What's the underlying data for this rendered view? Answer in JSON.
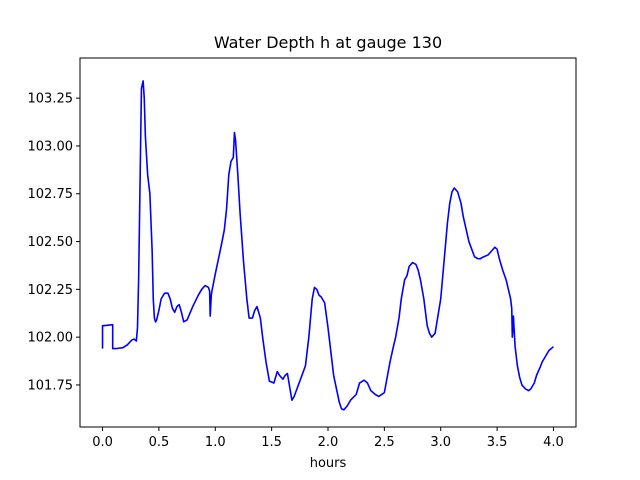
{
  "chart_data": {
    "type": "line",
    "title": "Water Depth h at gauge 130",
    "xlabel": "hours",
    "ylabel": "",
    "xlim": [
      -0.2,
      4.2
    ],
    "ylim": [
      101.53,
      103.46
    ],
    "xticks": [
      0.0,
      0.5,
      1.0,
      1.5,
      2.0,
      2.5,
      3.0,
      3.5,
      4.0
    ],
    "xtick_labels": [
      "0.0",
      "0.5",
      "1.0",
      "1.5",
      "2.0",
      "2.5",
      "3.0",
      "3.5",
      "4.0"
    ],
    "yticks": [
      101.75,
      102.0,
      102.25,
      102.5,
      102.75,
      103.0,
      103.25
    ],
    "ytick_labels": [
      "101.75",
      "102.00",
      "102.25",
      "102.50",
      "102.75",
      "103.00",
      "103.25"
    ],
    "grid": false,
    "series": [
      {
        "name": "",
        "color": "#0000ff",
        "x": [
          0.0,
          0.0,
          0.01,
          0.09,
          0.09,
          0.12,
          0.18,
          0.22,
          0.26,
          0.28,
          0.3,
          0.31,
          0.32,
          0.33,
          0.345,
          0.36,
          0.37,
          0.38,
          0.4,
          0.42,
          0.44,
          0.45,
          0.46,
          0.47,
          0.48,
          0.5,
          0.52,
          0.55,
          0.58,
          0.6,
          0.62,
          0.64,
          0.66,
          0.68,
          0.7,
          0.72,
          0.75,
          0.8,
          0.85,
          0.88,
          0.91,
          0.94,
          0.95,
          0.955,
          0.965,
          0.97,
          1.0,
          1.05,
          1.08,
          1.1,
          1.12,
          1.14,
          1.16,
          1.17,
          1.18,
          1.2,
          1.22,
          1.25,
          1.28,
          1.3,
          1.33,
          1.35,
          1.37,
          1.4,
          1.42,
          1.45,
          1.48,
          1.52,
          1.55,
          1.57,
          1.6,
          1.62,
          1.64,
          1.66,
          1.68,
          1.7,
          1.75,
          1.8,
          1.83,
          1.86,
          1.88,
          1.9,
          1.92,
          1.94,
          1.97,
          2.0,
          2.05,
          2.1,
          2.12,
          2.14,
          2.17,
          2.2,
          2.25,
          2.28,
          2.32,
          2.35,
          2.38,
          2.42,
          2.45,
          2.5,
          2.55,
          2.58,
          2.6,
          2.63,
          2.65,
          2.68,
          2.7,
          2.72,
          2.75,
          2.78,
          2.8,
          2.82,
          2.85,
          2.88,
          2.9,
          2.92,
          2.95,
          3.0,
          3.03,
          3.06,
          3.08,
          3.1,
          3.12,
          3.15,
          3.18,
          3.2,
          3.25,
          3.3,
          3.33,
          3.35,
          3.38,
          3.42,
          3.45,
          3.48,
          3.5,
          3.52,
          3.55,
          3.58,
          3.6,
          3.62,
          3.63,
          3.635,
          3.645,
          3.65,
          3.66,
          3.68,
          3.7,
          3.72,
          3.75,
          3.78,
          3.8,
          3.83,
          3.85,
          3.88,
          3.9,
          3.93,
          3.96,
          4.0
        ],
        "y": [
          101.94,
          102.06,
          102.06,
          102.065,
          101.94,
          101.94,
          101.945,
          101.96,
          101.985,
          101.99,
          101.98,
          102.05,
          102.3,
          102.7,
          103.3,
          103.34,
          103.25,
          103.05,
          102.85,
          102.75,
          102.45,
          102.2,
          102.1,
          102.08,
          102.09,
          102.14,
          102.2,
          102.23,
          102.23,
          102.2,
          102.15,
          102.13,
          102.16,
          102.17,
          102.13,
          102.08,
          102.09,
          102.16,
          102.22,
          102.25,
          102.27,
          102.26,
          102.24,
          102.11,
          102.22,
          102.24,
          102.33,
          102.47,
          102.56,
          102.67,
          102.85,
          102.92,
          102.94,
          103.07,
          103.03,
          102.85,
          102.65,
          102.4,
          102.2,
          102.1,
          102.1,
          102.14,
          102.16,
          102.1,
          102.0,
          101.87,
          101.77,
          101.76,
          101.82,
          101.8,
          101.78,
          101.8,
          101.81,
          101.74,
          101.67,
          101.69,
          101.77,
          101.85,
          102.0,
          102.2,
          102.26,
          102.25,
          102.22,
          102.21,
          102.18,
          102.05,
          101.8,
          101.66,
          101.625,
          101.62,
          101.64,
          101.67,
          101.7,
          101.76,
          101.775,
          101.76,
          101.72,
          101.7,
          101.69,
          101.71,
          101.87,
          101.95,
          102.0,
          102.1,
          102.2,
          102.3,
          102.32,
          102.37,
          102.39,
          102.38,
          102.35,
          102.3,
          102.2,
          102.06,
          102.02,
          102.0,
          102.02,
          102.2,
          102.4,
          102.6,
          102.7,
          102.76,
          102.78,
          102.76,
          102.7,
          102.63,
          102.5,
          102.42,
          102.41,
          102.41,
          102.42,
          102.43,
          102.45,
          102.47,
          102.46,
          102.41,
          102.35,
          102.3,
          102.25,
          102.2,
          102.15,
          102.0,
          102.11,
          102.05,
          101.95,
          101.85,
          101.79,
          101.75,
          101.73,
          101.72,
          101.73,
          101.76,
          101.8,
          101.84,
          101.87,
          101.9,
          101.93,
          101.95
        ]
      }
    ]
  }
}
